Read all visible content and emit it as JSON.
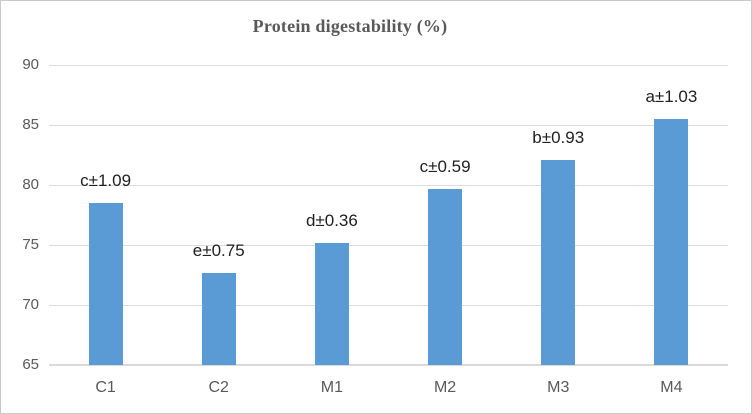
{
  "chart_data": {
    "type": "bar",
    "title": "Protein digestability (%)",
    "categories": [
      "C1",
      "C2",
      "M1",
      "M2",
      "M3",
      "M4"
    ],
    "series": [
      {
        "name": "Protein digestability (%)",
        "values": [
          78.5,
          72.7,
          75.2,
          79.7,
          82.1,
          85.5
        ]
      }
    ],
    "bar_labels": [
      "c±1.09",
      "e±0.75",
      "d±0.36",
      "c±0.59",
      "b±0.93",
      "a±1.03"
    ],
    "xlabel": "",
    "ylabel": "",
    "ylim": [
      65,
      90
    ],
    "ytick_step": 5,
    "ytick_labels": [
      "90",
      "85",
      "80",
      "75",
      "70",
      "65"
    ],
    "grid": true,
    "legend": "none",
    "colors": {
      "bar": "#5B9BD5",
      "gridline": "#DCDCDC",
      "axis_line": "#DADADA",
      "title_text": "#595959",
      "axis_text": "#595959",
      "label_text": "#1F1F1F",
      "frame_border": "#C9C9C9",
      "background": "#FFFFFF"
    }
  }
}
